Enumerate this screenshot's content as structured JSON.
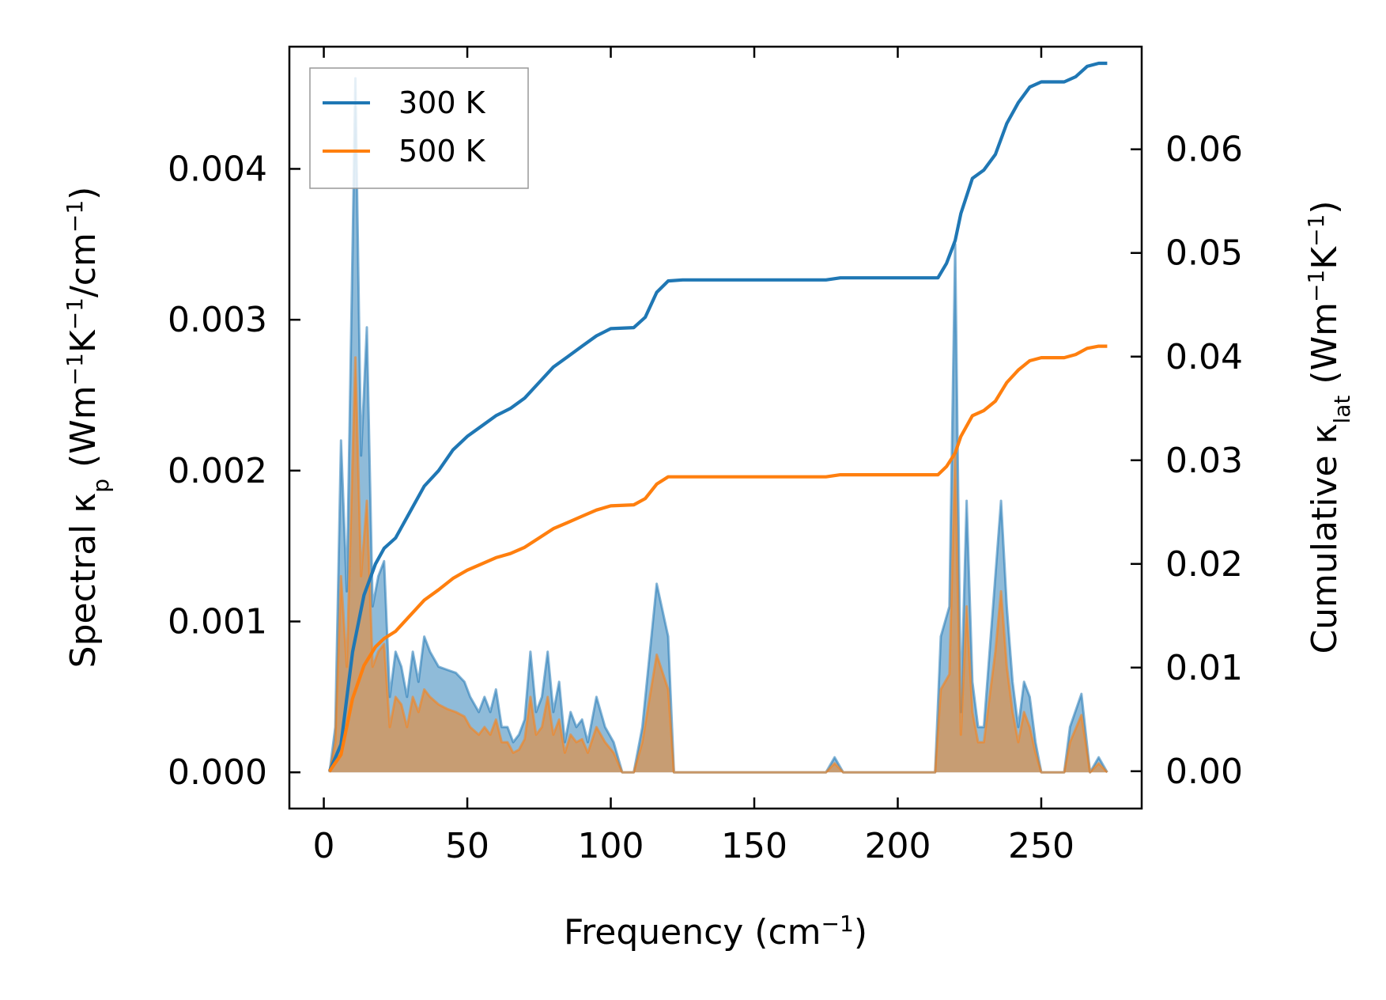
{
  "chart_data": {
    "type": "area",
    "xlabel": "Frequency (cm",
    "xlabel_sup": "−1",
    "xlabel_end": ")",
    "ylabel_left": "Spectral κ",
    "ylabel_left_sub": "p",
    "ylabel_left_rest": " (Wm",
    "ylabel_left_sup1": "−1",
    "ylabel_left_k": "K",
    "ylabel_left_sup2": "−1",
    "ylabel_left_slash": "/cm",
    "ylabel_left_sup3": "−1",
    "ylabel_left_end": ")",
    "ylabel_right": "Cumulative κ",
    "ylabel_right_sub": "lat",
    "ylabel_right_rest": " (Wm",
    "ylabel_right_sup1": "−1",
    "ylabel_right_k": "K",
    "ylabel_right_sup2": "−1",
    "ylabel_right_end": ")",
    "xlim": [
      -12,
      285
    ],
    "ylim_left": [
      -0.00024,
      0.00481
    ],
    "ylim_right": [
      -0.0036,
      0.0699
    ],
    "xticks": [
      "0",
      "50",
      "100",
      "150",
      "200",
      "250"
    ],
    "xtick_values": [
      0,
      50,
      100,
      150,
      200,
      250
    ],
    "yticks_left": [
      "0.000",
      "0.001",
      "0.002",
      "0.003",
      "0.004"
    ],
    "ytick_left_values": [
      0,
      0.001,
      0.002,
      0.003,
      0.004
    ],
    "yticks_right": [
      "0.00",
      "0.01",
      "0.02",
      "0.03",
      "0.04",
      "0.05",
      "0.06"
    ],
    "ytick_right_values": [
      0,
      0.01,
      0.02,
      0.03,
      0.04,
      0.05,
      0.06
    ],
    "legend_position": "upper-left",
    "series": [
      {
        "name": "300 K",
        "color": "#1f77b4",
        "spectral": [
          [
            2,
            0
          ],
          [
            4,
            0.0003
          ],
          [
            6,
            0.0022
          ],
          [
            8,
            0.0012
          ],
          [
            11,
            0.0046
          ],
          [
            13,
            0.0021
          ],
          [
            15,
            0.00295
          ],
          [
            17,
            0.0011
          ],
          [
            19,
            0.0013
          ],
          [
            21,
            0.0014
          ],
          [
            23,
            0.0005
          ],
          [
            25,
            0.0008
          ],
          [
            27,
            0.0007
          ],
          [
            29,
            0.0005
          ],
          [
            31,
            0.0008
          ],
          [
            33,
            0.0006
          ],
          [
            35,
            0.0009
          ],
          [
            37,
            0.0008
          ],
          [
            40,
            0.0007
          ],
          [
            43,
            0.00068
          ],
          [
            46,
            0.00066
          ],
          [
            49,
            0.0006
          ],
          [
            51,
            0.0005
          ],
          [
            54,
            0.0004
          ],
          [
            56,
            0.0005
          ],
          [
            58,
            0.0004
          ],
          [
            60,
            0.00055
          ],
          [
            62,
            0.0003
          ],
          [
            64,
            0.0003
          ],
          [
            66,
            0.0002
          ],
          [
            68,
            0.00025
          ],
          [
            70,
            0.00035
          ],
          [
            72,
            0.0008
          ],
          [
            74,
            0.0004
          ],
          [
            76,
            0.0005
          ],
          [
            78,
            0.0008
          ],
          [
            80,
            0.0004
          ],
          [
            82,
            0.0006
          ],
          [
            84,
            0.0002
          ],
          [
            86,
            0.0004
          ],
          [
            88,
            0.0003
          ],
          [
            90,
            0.00035
          ],
          [
            92,
            0.0002
          ],
          [
            95,
            0.0005
          ],
          [
            98,
            0.0003
          ],
          [
            101,
            0.0002
          ],
          [
            104,
            0
          ],
          [
            108,
            0
          ],
          [
            111,
            0.0003
          ],
          [
            116,
            0.00125
          ],
          [
            120,
            0.0009
          ],
          [
            122,
            0
          ],
          [
            130,
            0
          ],
          [
            175,
            0
          ],
          [
            178,
            0.0001
          ],
          [
            181,
            0
          ],
          [
            213,
            0
          ],
          [
            215,
            0.0009
          ],
          [
            218,
            0.0011
          ],
          [
            220,
            0.0035
          ],
          [
            222,
            0.0004
          ],
          [
            224,
            0.0018
          ],
          [
            226,
            0.0006
          ],
          [
            228,
            0.0003
          ],
          [
            230,
            0.0003
          ],
          [
            232,
            0.0008
          ],
          [
            234,
            0.0013
          ],
          [
            236,
            0.0018
          ],
          [
            238,
            0.0011
          ],
          [
            240,
            0.0006
          ],
          [
            242,
            0.0003
          ],
          [
            244,
            0.0006
          ],
          [
            246,
            0.0005
          ],
          [
            248,
            0.0002
          ],
          [
            250,
            0
          ],
          [
            258,
            0
          ],
          [
            260,
            0.0003
          ],
          [
            264,
            0.00052
          ],
          [
            267,
            0
          ],
          [
            270,
            0.0001
          ],
          [
            273,
            0
          ]
        ],
        "cumulative": [
          [
            2,
            0
          ],
          [
            6,
            0.0026
          ],
          [
            10,
            0.0115
          ],
          [
            14,
            0.017
          ],
          [
            18,
            0.02
          ],
          [
            21,
            0.0215
          ],
          [
            25,
            0.0225
          ],
          [
            30,
            0.025
          ],
          [
            35,
            0.0275
          ],
          [
            40,
            0.029
          ],
          [
            45,
            0.031
          ],
          [
            50,
            0.0323
          ],
          [
            55,
            0.0333
          ],
          [
            60,
            0.0343
          ],
          [
            65,
            0.035
          ],
          [
            70,
            0.036
          ],
          [
            75,
            0.0375
          ],
          [
            80,
            0.039
          ],
          [
            85,
            0.04
          ],
          [
            90,
            0.041
          ],
          [
            95,
            0.042
          ],
          [
            100,
            0.0427
          ],
          [
            108,
            0.0428
          ],
          [
            112,
            0.0438
          ],
          [
            116,
            0.0462
          ],
          [
            120,
            0.0473
          ],
          [
            125,
            0.0474
          ],
          [
            175,
            0.0474
          ],
          [
            180,
            0.0476
          ],
          [
            214,
            0.0476
          ],
          [
            217,
            0.049
          ],
          [
            220,
            0.0512
          ],
          [
            222,
            0.0538
          ],
          [
            226,
            0.0572
          ],
          [
            230,
            0.058
          ],
          [
            234,
            0.0595
          ],
          [
            238,
            0.0625
          ],
          [
            242,
            0.0645
          ],
          [
            246,
            0.066
          ],
          [
            250,
            0.0665
          ],
          [
            258,
            0.0665
          ],
          [
            262,
            0.067
          ],
          [
            266,
            0.068
          ],
          [
            270,
            0.0683
          ],
          [
            273,
            0.0683
          ]
        ]
      },
      {
        "name": "500 K",
        "color": "#ff7f0e",
        "spectral": [
          [
            2,
            0
          ],
          [
            4,
            0.0002
          ],
          [
            6,
            0.0013
          ],
          [
            8,
            0.0007
          ],
          [
            11,
            0.00275
          ],
          [
            13,
            0.0013
          ],
          [
            15,
            0.0018
          ],
          [
            17,
            0.0007
          ],
          [
            19,
            0.0008
          ],
          [
            21,
            0.00085
          ],
          [
            23,
            0.0003
          ],
          [
            25,
            0.0005
          ],
          [
            27,
            0.00045
          ],
          [
            29,
            0.0003
          ],
          [
            31,
            0.0005
          ],
          [
            33,
            0.0004
          ],
          [
            35,
            0.00055
          ],
          [
            37,
            0.0005
          ],
          [
            40,
            0.00045
          ],
          [
            43,
            0.00042
          ],
          [
            46,
            0.0004
          ],
          [
            49,
            0.00037
          ],
          [
            51,
            0.0003
          ],
          [
            54,
            0.00025
          ],
          [
            56,
            0.0003
          ],
          [
            58,
            0.00025
          ],
          [
            60,
            0.00035
          ],
          [
            62,
            0.0002
          ],
          [
            64,
            0.0002
          ],
          [
            66,
            0.00013
          ],
          [
            68,
            0.00015
          ],
          [
            70,
            0.00022
          ],
          [
            72,
            0.0005
          ],
          [
            74,
            0.00025
          ],
          [
            76,
            0.0003
          ],
          [
            78,
            0.0005
          ],
          [
            80,
            0.00025
          ],
          [
            82,
            0.00035
          ],
          [
            84,
            0.00013
          ],
          [
            86,
            0.00025
          ],
          [
            88,
            0.0002
          ],
          [
            90,
            0.00022
          ],
          [
            92,
            0.00013
          ],
          [
            95,
            0.0003
          ],
          [
            98,
            0.0002
          ],
          [
            101,
            0.00013
          ],
          [
            104,
            0
          ],
          [
            108,
            0
          ],
          [
            111,
            0.0002
          ],
          [
            116,
            0.00078
          ],
          [
            120,
            0.00055
          ],
          [
            122,
            0
          ],
          [
            130,
            0
          ],
          [
            175,
            0
          ],
          [
            178,
            6e-05
          ],
          [
            181,
            0
          ],
          [
            213,
            0
          ],
          [
            215,
            0.00055
          ],
          [
            218,
            0.00065
          ],
          [
            220,
            0.0021
          ],
          [
            222,
            0.00025
          ],
          [
            224,
            0.0011
          ],
          [
            226,
            0.0004
          ],
          [
            228,
            0.0002
          ],
          [
            230,
            0.0002
          ],
          [
            232,
            0.0005
          ],
          [
            234,
            0.0008
          ],
          [
            236,
            0.0012
          ],
          [
            238,
            0.0007
          ],
          [
            240,
            0.0004
          ],
          [
            242,
            0.0002
          ],
          [
            244,
            0.0004
          ],
          [
            246,
            0.0003
          ],
          [
            248,
            0.00013
          ],
          [
            250,
            0
          ],
          [
            258,
            0
          ],
          [
            260,
            0.0002
          ],
          [
            264,
            0.00038
          ],
          [
            267,
            0
          ],
          [
            270,
            6e-05
          ],
          [
            273,
            0
          ]
        ],
        "cumulative": [
          [
            2,
            0
          ],
          [
            6,
            0.0016
          ],
          [
            10,
            0.007
          ],
          [
            14,
            0.0102
          ],
          [
            18,
            0.012
          ],
          [
            21,
            0.0128
          ],
          [
            25,
            0.0135
          ],
          [
            30,
            0.015
          ],
          [
            35,
            0.0165
          ],
          [
            40,
            0.0175
          ],
          [
            45,
            0.0186
          ],
          [
            50,
            0.0194
          ],
          [
            55,
            0.02
          ],
          [
            60,
            0.0206
          ],
          [
            65,
            0.021
          ],
          [
            70,
            0.0216
          ],
          [
            75,
            0.0225
          ],
          [
            80,
            0.0234
          ],
          [
            85,
            0.024
          ],
          [
            90,
            0.0246
          ],
          [
            95,
            0.0252
          ],
          [
            100,
            0.0256
          ],
          [
            108,
            0.0257
          ],
          [
            112,
            0.0263
          ],
          [
            116,
            0.0277
          ],
          [
            120,
            0.0284
          ],
          [
            125,
            0.0284
          ],
          [
            175,
            0.0284
          ],
          [
            180,
            0.0286
          ],
          [
            214,
            0.0286
          ],
          [
            217,
            0.0294
          ],
          [
            220,
            0.0307
          ],
          [
            222,
            0.0323
          ],
          [
            226,
            0.0343
          ],
          [
            230,
            0.0348
          ],
          [
            234,
            0.0357
          ],
          [
            238,
            0.0375
          ],
          [
            242,
            0.0387
          ],
          [
            246,
            0.0396
          ],
          [
            250,
            0.0399
          ],
          [
            258,
            0.0399
          ],
          [
            262,
            0.0402
          ],
          [
            266,
            0.0408
          ],
          [
            270,
            0.041
          ],
          [
            273,
            0.041
          ]
        ]
      }
    ]
  }
}
